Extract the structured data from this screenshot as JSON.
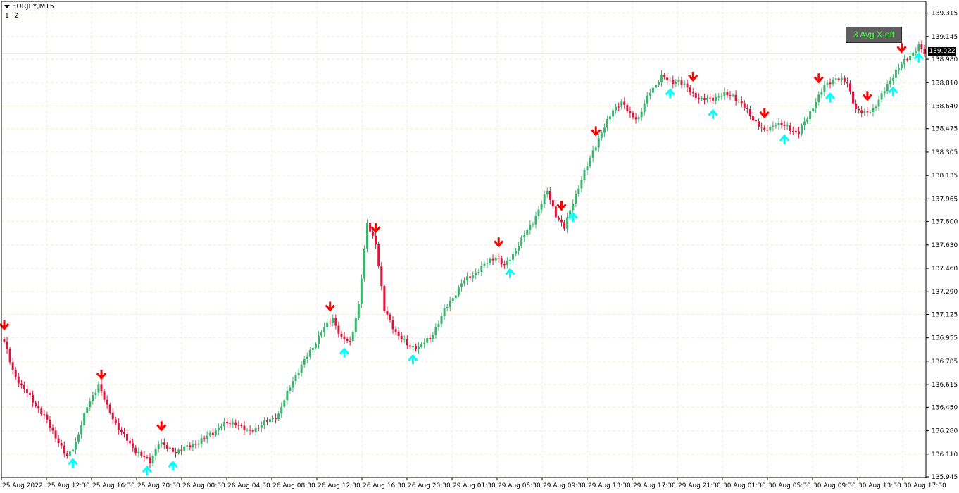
{
  "header": {
    "symbol_label": "EURJPY,M15",
    "sub_labels": [
      "1",
      "2"
    ]
  },
  "indicator_button": {
    "label": "3 Avg X-off"
  },
  "current_price": "139.022",
  "colors": {
    "bull": "#3cb371",
    "bear": "#dc143c",
    "buy_arrow": "#00ffff",
    "sell_arrow": "#ff0000",
    "grid": "#f2ecd8",
    "axis": "#000000",
    "indicator_button_bg": "#5f5f5f",
    "indicator_button_text": "#3cff3c"
  },
  "chart_data": {
    "type": "line",
    "description_series_kind": "candlestick",
    "symbol": "EURJPY",
    "timeframe": "M15",
    "ylim": [
      135.94,
      139.4
    ],
    "y_ticks": [
      "139.315",
      "139.145",
      "138.980",
      "138.810",
      "138.640",
      "138.475",
      "138.305",
      "138.135",
      "137.965",
      "137.800",
      "137.630",
      "137.460",
      "137.290",
      "137.125",
      "136.955",
      "136.785",
      "136.615",
      "136.450",
      "136.280",
      "136.110",
      "135.945"
    ],
    "x_ticks": [
      "25 Aug 2022",
      "25 Aug 12:30",
      "25 Aug 16:30",
      "25 Aug 20:30",
      "26 Aug 00:30",
      "26 Aug 04:30",
      "26 Aug 08:30",
      "26 Aug 12:30",
      "26 Aug 16:30",
      "26 Aug 20:30",
      "29 Aug 01:30",
      "29 Aug 05:30",
      "29 Aug 09:30",
      "29 Aug 13:30",
      "29 Aug 17:30",
      "29 Aug 21:30",
      "30 Aug 01:30",
      "30 Aug 05:30",
      "30 Aug 09:30",
      "30 Aug 13:30",
      "30 Aug 17:30"
    ],
    "grid": true,
    "anchors": [
      [
        0,
        136.92
      ],
      [
        3,
        136.72
      ],
      [
        6,
        136.6
      ],
      [
        10,
        136.5
      ],
      [
        14,
        136.38
      ],
      [
        18,
        136.24
      ],
      [
        22,
        136.08
      ],
      [
        25,
        136.2
      ],
      [
        29,
        136.45
      ],
      [
        33,
        136.62
      ],
      [
        36,
        136.45
      ],
      [
        40,
        136.3
      ],
      [
        44,
        136.18
      ],
      [
        48,
        136.1
      ],
      [
        51,
        136.05
      ],
      [
        54,
        136.2
      ],
      [
        57,
        136.15
      ],
      [
        60,
        136.13
      ],
      [
        64,
        136.16
      ],
      [
        70,
        136.22
      ],
      [
        76,
        136.32
      ],
      [
        81,
        136.34
      ],
      [
        85,
        136.27
      ],
      [
        90,
        136.32
      ],
      [
        96,
        136.4
      ],
      [
        101,
        136.65
      ],
      [
        106,
        136.82
      ],
      [
        111,
        137.0
      ],
      [
        115,
        137.1
      ],
      [
        118,
        136.95
      ],
      [
        121,
        136.92
      ],
      [
        124,
        137.2
      ],
      [
        127,
        137.78
      ],
      [
        130,
        137.65
      ],
      [
        133,
        137.15
      ],
      [
        137,
        137.0
      ],
      [
        141,
        136.9
      ],
      [
        145,
        136.89
      ],
      [
        149,
        136.95
      ],
      [
        154,
        137.15
      ],
      [
        160,
        137.35
      ],
      [
        166,
        137.45
      ],
      [
        172,
        137.55
      ],
      [
        175,
        137.47
      ],
      [
        179,
        137.6
      ],
      [
        185,
        137.8
      ],
      [
        190,
        138.02
      ],
      [
        193,
        137.85
      ],
      [
        196,
        137.75
      ],
      [
        199,
        137.95
      ],
      [
        203,
        138.15
      ],
      [
        206,
        138.32
      ],
      [
        210,
        138.48
      ],
      [
        213,
        138.62
      ],
      [
        216,
        138.66
      ],
      [
        219,
        138.58
      ],
      [
        222,
        138.55
      ],
      [
        226,
        138.75
      ],
      [
        230,
        138.85
      ],
      [
        233,
        138.82
      ],
      [
        236,
        138.82
      ],
      [
        240,
        138.75
      ],
      [
        244,
        138.68
      ],
      [
        248,
        138.7
      ],
      [
        252,
        138.72
      ],
      [
        255,
        138.72
      ],
      [
        258,
        138.65
      ],
      [
        262,
        138.55
      ],
      [
        266,
        138.45
      ],
      [
        270,
        138.52
      ],
      [
        274,
        138.48
      ],
      [
        278,
        138.45
      ],
      [
        281,
        138.55
      ],
      [
        284,
        138.68
      ],
      [
        287,
        138.78
      ],
      [
        291,
        138.85
      ],
      [
        295,
        138.8
      ],
      [
        298,
        138.62
      ],
      [
        301,
        138.58
      ],
      [
        304,
        138.62
      ],
      [
        308,
        138.75
      ],
      [
        312,
        138.9
      ],
      [
        316,
        138.98
      ],
      [
        320,
        139.08
      ],
      [
        322,
        139.02
      ]
    ],
    "buy_arrows": [
      24,
      50,
      59,
      119,
      143,
      177,
      199,
      233,
      248,
      273,
      289,
      311,
      320
    ],
    "sell_arrows": [
      0,
      34,
      55,
      114,
      130,
      173,
      195,
      207,
      241,
      266,
      285,
      302,
      314
    ]
  }
}
